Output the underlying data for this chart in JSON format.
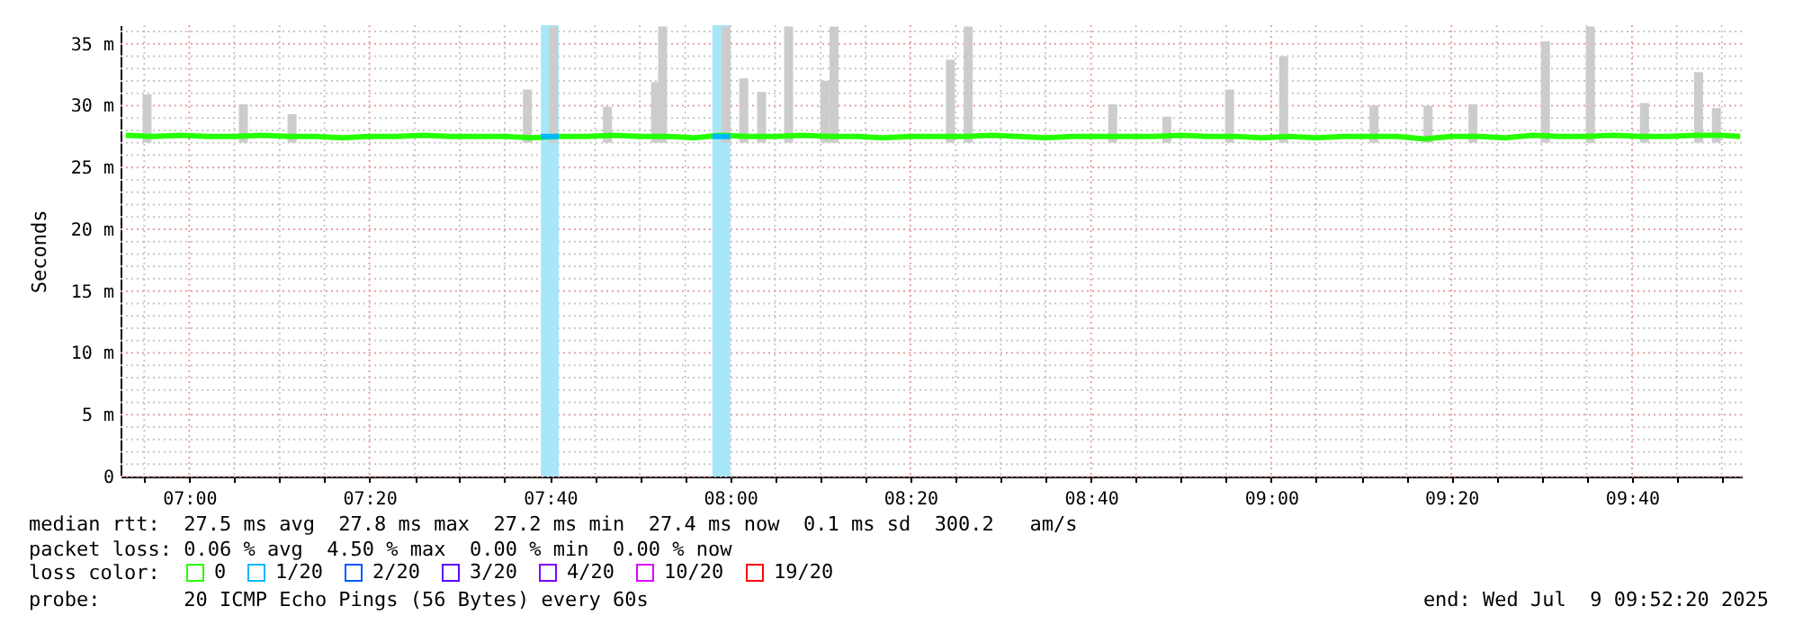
{
  "chart_data": {
    "type": "line",
    "ylabel": "Seconds",
    "legend_title": "loss color:",
    "legend": "bottom",
    "grid": true,
    "line_style": "solid",
    "marker": "none",
    "xlim": [
      6.873,
      9.87
    ],
    "ylim": [
      0,
      36.5
    ],
    "xticks": [
      {
        "value": 6.917,
        "label": null
      },
      {
        "value": 7,
        "label": "07:00"
      },
      {
        "value": 7.083,
        "label": null
      },
      {
        "value": 7.167,
        "label": null
      },
      {
        "value": 7.25,
        "label": null
      },
      {
        "value": 7.333,
        "label": "07:20"
      },
      {
        "value": 7.417,
        "label": null
      },
      {
        "value": 7.5,
        "label": null
      },
      {
        "value": 7.583,
        "label": null
      },
      {
        "value": 7.667,
        "label": "07:40"
      },
      {
        "value": 7.75,
        "label": null
      },
      {
        "value": 7.833,
        "label": null
      },
      {
        "value": 7.917,
        "label": null
      },
      {
        "value": 8,
        "label": "08:00"
      },
      {
        "value": 8.083,
        "label": null
      },
      {
        "value": 8.167,
        "label": null
      },
      {
        "value": 8.25,
        "label": null
      },
      {
        "value": 8.333,
        "label": "08:20"
      },
      {
        "value": 8.417,
        "label": null
      },
      {
        "value": 8.5,
        "label": null
      },
      {
        "value": 8.583,
        "label": null
      },
      {
        "value": 8.667,
        "label": "08:40"
      },
      {
        "value": 8.75,
        "label": null
      },
      {
        "value": 8.833,
        "label": null
      },
      {
        "value": 8.917,
        "label": null
      },
      {
        "value": 9,
        "label": "09:00"
      },
      {
        "value": 9.083,
        "label": null
      },
      {
        "value": 9.167,
        "label": null
      },
      {
        "value": 9.25,
        "label": null
      },
      {
        "value": 9.333,
        "label": "09:20"
      },
      {
        "value": 9.417,
        "label": null
      },
      {
        "value": 9.5,
        "label": null
      },
      {
        "value": 9.583,
        "label": null
      },
      {
        "value": 9.667,
        "label": "09:40"
      },
      {
        "value": 9.75,
        "label": null
      },
      {
        "value": 9.833,
        "label": null
      }
    ],
    "yticks": [
      0,
      {
        "value": 1,
        "label": null
      },
      {
        "value": 2,
        "label": null
      },
      {
        "value": 3,
        "label": null
      },
      {
        "value": 4,
        "label": null
      },
      {
        "value": 5,
        "label": "5 m"
      },
      {
        "value": 6,
        "label": null
      },
      {
        "value": 7,
        "label": null
      },
      {
        "value": 8,
        "label": null
      },
      {
        "value": 9,
        "label": null
      },
      {
        "value": 10,
        "label": "10 m"
      },
      {
        "value": 11,
        "label": null
      },
      {
        "value": 12,
        "label": null
      },
      {
        "value": 13,
        "label": null
      },
      {
        "value": 14,
        "label": null
      },
      {
        "value": 15,
        "label": "15 m"
      },
      {
        "value": 16,
        "label": null
      },
      {
        "value": 17,
        "label": null
      },
      {
        "value": 18,
        "label": null
      },
      {
        "value": 19,
        "label": null
      },
      {
        "value": 20,
        "label": "20 m"
      },
      {
        "value": 21,
        "label": null
      },
      {
        "value": 22,
        "label": null
      },
      {
        "value": 23,
        "label": null
      },
      {
        "value": 24,
        "label": null
      },
      {
        "value": 25,
        "label": "25 m"
      },
      {
        "value": 26,
        "label": null
      },
      {
        "value": 27,
        "label": null
      },
      {
        "value": 28,
        "label": null
      },
      {
        "value": 29,
        "label": null
      },
      {
        "value": 30,
        "label": "30 m"
      },
      {
        "value": 31,
        "label": null
      },
      {
        "value": 32,
        "label": null
      },
      {
        "value": 33,
        "label": null
      },
      {
        "value": 34,
        "label": null
      },
      {
        "value": 35,
        "label": "35 m"
      },
      {
        "value": 36,
        "label": null
      }
    ],
    "x": [
      6.883,
      6.933,
      6.983,
      7.033,
      7.083,
      7.133,
      7.183,
      7.233,
      7.283,
      7.333,
      7.383,
      7.433,
      7.483,
      7.533,
      7.583,
      7.633,
      7.683,
      7.733,
      7.783,
      7.833,
      7.883,
      7.933,
      7.983,
      8.033,
      8.083,
      8.133,
      8.183,
      8.233,
      8.283,
      8.333,
      8.383,
      8.433,
      8.483,
      8.533,
      8.583,
      8.633,
      8.683,
      8.733,
      8.783,
      8.833,
      8.883,
      8.933,
      8.983,
      9.033,
      9.083,
      9.133,
      9.183,
      9.233,
      9.283,
      9.333,
      9.383,
      9.433,
      9.483,
      9.533,
      9.583,
      9.633,
      9.683,
      9.733,
      9.783,
      9.833,
      9.867
    ],
    "bands": [
      {
        "axis": "x",
        "from": 7.65,
        "to": 7.683,
        "color": "#a8e6fa"
      },
      {
        "axis": "x",
        "from": 7.967,
        "to": 8.0,
        "color": "#a8e6fa"
      }
    ],
    "series": [
      {
        "type": "bar",
        "color": "#cccccc",
        "x": [
          6.922,
          7.1,
          7.19,
          7.625,
          7.673,
          7.773,
          7.862,
          7.875,
          7.992,
          8.025,
          8.058,
          8.108,
          8.175,
          8.192,
          8.407,
          8.44,
          8.707,
          8.807,
          8.923,
          9.023,
          9.19,
          9.29,
          9.373,
          9.507,
          9.59,
          9.69,
          9.79,
          9.823
        ],
        "base": [
          27,
          27,
          27,
          27,
          27,
          27,
          27,
          27,
          27,
          27,
          27,
          27,
          27,
          27,
          27,
          27,
          27,
          27,
          27,
          27,
          27,
          27,
          27,
          27,
          27,
          27,
          27,
          27
        ],
        "values": [
          3.9,
          3.1,
          2.3,
          4.3,
          9.4,
          2.9,
          4.9,
          9.4,
          9.4,
          5.2,
          4.1,
          9.4,
          5.0,
          9.4,
          6.7,
          9.4,
          3.1,
          2.1,
          4.3,
          7.0,
          3.0,
          3.0,
          3.1,
          8.2,
          9.4,
          3.2,
          5.7,
          2.8
        ]
      },
      {
        "name": "0",
        "color": "#26ff00",
        "values": [
          27.6,
          27.5,
          27.6,
          27.5,
          27.5,
          27.6,
          27.5,
          27.5,
          27.4,
          27.5,
          27.5,
          27.6,
          27.5,
          27.5,
          27.5,
          27.4,
          27.5,
          27.5,
          27.6,
          27.5,
          27.5,
          27.4,
          27.6,
          27.5,
          27.5,
          27.6,
          27.5,
          27.5,
          27.4,
          27.5,
          27.5,
          27.5,
          27.6,
          27.5,
          27.4,
          27.5,
          27.5,
          27.5,
          27.5,
          27.6,
          27.5,
          27.5,
          27.4,
          27.5,
          27.4,
          27.5,
          27.5,
          27.5,
          27.3,
          27.5,
          27.5,
          27.4,
          27.6,
          27.5,
          27.5,
          27.6,
          27.5,
          27.5,
          27.6,
          27.6,
          27.5
        ]
      },
      {
        "name": "1/20",
        "color": "#00b8ff",
        "x": [
          7.65,
          7.683,
          7.7,
          7.967,
          8.0
        ],
        "values": [
          27.5,
          27.5,
          null,
          27.5,
          27.5
        ]
      },
      {
        "name": "2/20",
        "color": "#0059ff",
        "values": [
          null,
          null,
          null,
          null,
          null,
          null,
          null,
          null,
          null,
          null,
          null,
          null,
          null,
          null,
          null,
          null,
          null,
          null,
          null,
          null,
          null,
          null,
          null,
          null,
          null,
          null,
          null,
          null,
          null,
          null,
          null,
          null,
          null,
          null,
          null,
          null,
          null,
          null,
          null,
          null,
          null,
          null,
          null,
          null,
          null,
          null,
          null,
          null,
          null,
          null,
          null,
          null,
          null,
          null,
          null,
          null,
          null,
          null,
          null,
          null,
          null
        ]
      },
      {
        "name": "3/20",
        "color": "#5e00ff",
        "values": [
          null,
          null,
          null,
          null,
          null,
          null,
          null,
          null,
          null,
          null,
          null,
          null,
          null,
          null,
          null,
          null,
          null,
          null,
          null,
          null,
          null,
          null,
          null,
          null,
          null,
          null,
          null,
          null,
          null,
          null,
          null,
          null,
          null,
          null,
          null,
          null,
          null,
          null,
          null,
          null,
          null,
          null,
          null,
          null,
          null,
          null,
          null,
          null,
          null,
          null,
          null,
          null,
          null,
          null,
          null,
          null,
          null,
          null,
          null,
          null,
          null
        ]
      },
      {
        "name": "4/20",
        "color": "#7e00ff",
        "values": [
          null,
          null,
          null,
          null,
          null,
          null,
          null,
          null,
          null,
          null,
          null,
          null,
          null,
          null,
          null,
          null,
          null,
          null,
          null,
          null,
          null,
          null,
          null,
          null,
          null,
          null,
          null,
          null,
          null,
          null,
          null,
          null,
          null,
          null,
          null,
          null,
          null,
          null,
          null,
          null,
          null,
          null,
          null,
          null,
          null,
          null,
          null,
          null,
          null,
          null,
          null,
          null,
          null,
          null,
          null,
          null,
          null,
          null,
          null,
          null,
          null
        ]
      },
      {
        "name": "10/20",
        "color": "#dd00ff",
        "values": [
          null,
          null,
          null,
          null,
          null,
          null,
          null,
          null,
          null,
          null,
          null,
          null,
          null,
          null,
          null,
          null,
          null,
          null,
          null,
          null,
          null,
          null,
          null,
          null,
          null,
          null,
          null,
          null,
          null,
          null,
          null,
          null,
          null,
          null,
          null,
          null,
          null,
          null,
          null,
          null,
          null,
          null,
          null,
          null,
          null,
          null,
          null,
          null,
          null,
          null,
          null,
          null,
          null,
          null,
          null,
          null,
          null,
          null,
          null,
          null,
          null
        ]
      },
      {
        "name": "19/20",
        "color": "#ff0000",
        "values": [
          null,
          null,
          null,
          null,
          null,
          null,
          null,
          null,
          null,
          null,
          null,
          null,
          null,
          null,
          null,
          null,
          null,
          null,
          null,
          null,
          null,
          null,
          null,
          null,
          null,
          null,
          null,
          null,
          null,
          null,
          null,
          null,
          null,
          null,
          null,
          null,
          null,
          null,
          null,
          null,
          null,
          null,
          null,
          null,
          null,
          null,
          null,
          null,
          null,
          null,
          null,
          null,
          null,
          null,
          null,
          null,
          null,
          null,
          null,
          null,
          null
        ]
      }
    ],
    "annotations": [
      "median rtt:  27.5 ms avg  27.8 ms max  27.2 ms min  27.4 ms now  0.1 ms sd  300.2   am/s",
      "packet loss: 0.06 % avg  4.50 % max  0.00 % min  0.00 % now",
      "probe:       20 ICMP Echo Pings (56 Bytes) every 60s",
      "end: Wed Jul  9 09:52:20 2025"
    ]
  }
}
